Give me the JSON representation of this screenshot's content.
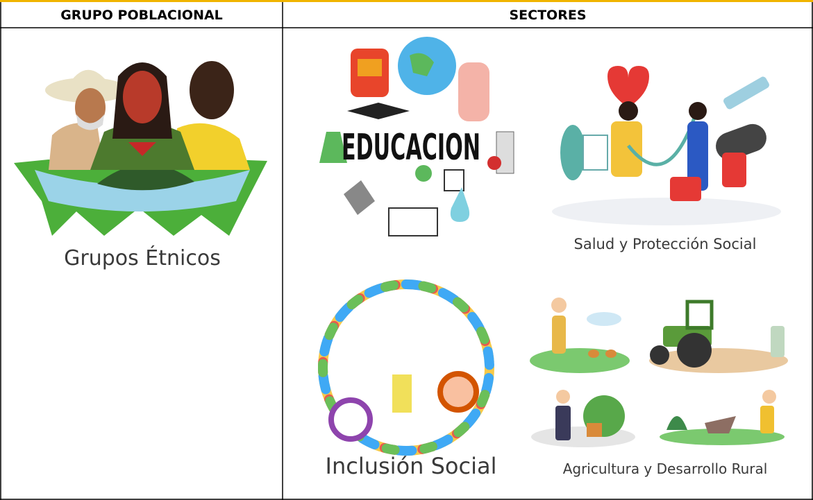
{
  "table": {
    "headers": [
      "GRUPO POBLACIONAL",
      "SECTORES"
    ],
    "groups": [
      {
        "label": "Grupos Étnicos"
      }
    ],
    "sectors": [
      {
        "label": "EDUCACION"
      },
      {
        "label": "Salud y Protección Social"
      },
      {
        "label": "Inclusión Social"
      },
      {
        "label": "Agricultura y Desarrollo Rural"
      }
    ]
  }
}
